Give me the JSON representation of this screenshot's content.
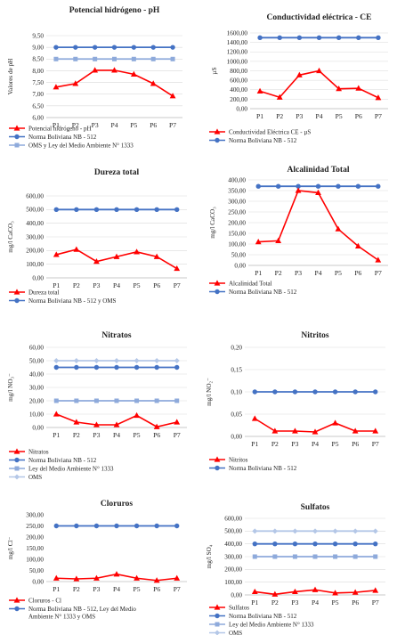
{
  "chart_data": [
    {
      "type": "line",
      "title": "Potencial hidrógeno - pH",
      "ylabel": "Valores de pH",
      "ylim": [
        6.0,
        9.5
      ],
      "ytick_step": 0.5,
      "ytick_labels": [
        "6,00",
        "6,50",
        "7,00",
        "7,50",
        "8,00",
        "8,50",
        "9,00",
        "9,50"
      ],
      "categories": [
        "P1",
        "P2",
        "P3",
        "P4",
        "P5",
        "P6",
        "P7"
      ],
      "grid": true,
      "legend_position": "bottom",
      "series": [
        {
          "name": "Potencial hidrógeno - pH",
          "values": [
            7.3,
            7.45,
            8.02,
            8.02,
            7.85,
            7.45,
            6.92
          ],
          "color": "#ff0000",
          "marker": "triangle"
        },
        {
          "name": "Norma Boliviana NB - 512",
          "values": [
            9.0,
            9.0,
            9.0,
            9.0,
            9.0,
            9.0,
            9.0
          ],
          "color": "#4472c4",
          "marker": "circle"
        },
        {
          "name": "OMS y Ley del Medio Ambiente N° 1333",
          "values": [
            8.5,
            8.5,
            8.5,
            8.5,
            8.5,
            8.5,
            8.5
          ],
          "color": "#8eaadb",
          "marker": "square"
        }
      ]
    },
    {
      "type": "line",
      "title": "Conductividad eléctrica - CE",
      "ylabel": "µS",
      "ylim": [
        0,
        1600
      ],
      "ytick_step": 200,
      "ytick_labels": [
        "0,00",
        "200,00",
        "400,00",
        "600,00",
        "800,00",
        "1000,00",
        "1200,00",
        "1400,00",
        "1600,00"
      ],
      "categories": [
        "P1",
        "P2",
        "P3",
        "P4",
        "P5",
        "P6",
        "P7"
      ],
      "grid": true,
      "legend_position": "bottom",
      "series": [
        {
          "name": "Conductividad Eléctrica CE - µS",
          "values": [
            370,
            240,
            710,
            800,
            420,
            430,
            230
          ],
          "color": "#ff0000",
          "marker": "triangle"
        },
        {
          "name": "Norma Boliviana NB - 512",
          "values": [
            1500,
            1500,
            1500,
            1500,
            1500,
            1500,
            1500
          ],
          "color": "#4472c4",
          "marker": "circle"
        }
      ]
    },
    {
      "type": "line",
      "title": "Dureza total",
      "ylabel": "mg/l CaCO₃",
      "ylim": [
        0,
        600
      ],
      "ytick_step": 100,
      "ytick_labels": [
        "0,00",
        "100,00",
        "200,00",
        "300,00",
        "400,00",
        "500,00",
        "600,00"
      ],
      "categories": [
        "P1",
        "P2",
        "P3",
        "P4",
        "P5",
        "P6",
        "P7"
      ],
      "grid": true,
      "legend_position": "bottom",
      "series": [
        {
          "name": "Dureza total",
          "values": [
            170,
            208,
            120,
            155,
            190,
            155,
            68
          ],
          "color": "#ff0000",
          "marker": "triangle"
        },
        {
          "name": "Norma Boliviana NB - 512 y OMS",
          "values": [
            500,
            500,
            500,
            500,
            500,
            500,
            500
          ],
          "color": "#4472c4",
          "marker": "circle"
        }
      ]
    },
    {
      "type": "line",
      "title": "Alcalinidad Total",
      "ylabel": "mg/l CaCO₃",
      "ylim": [
        0,
        400
      ],
      "ytick_step": 50,
      "ytick_labels": [
        "0,00",
        "50,00",
        "100,00",
        "150,00",
        "200,00",
        "250,00",
        "300,00",
        "350,00",
        "400,00"
      ],
      "categories": [
        "P1",
        "P2",
        "P3",
        "P4",
        "P5",
        "P6",
        "P7"
      ],
      "grid": true,
      "legend_position": "bottom",
      "series": [
        {
          "name": "Alcalinidad Total",
          "values": [
            110,
            115,
            350,
            340,
            170,
            90,
            25
          ],
          "color": "#ff0000",
          "marker": "triangle"
        },
        {
          "name": "Norma Boliviana NB - 512",
          "values": [
            370,
            370,
            370,
            370,
            370,
            370,
            370
          ],
          "color": "#4472c4",
          "marker": "circle"
        }
      ]
    },
    {
      "type": "line",
      "title": "Nitratos",
      "ylabel": "mg/l NO₃⁻",
      "ylim": [
        0,
        60
      ],
      "ytick_step": 10,
      "ytick_labels": [
        "0,00",
        "10,00",
        "20,00",
        "30,00",
        "40,00",
        "50,00",
        "60,00"
      ],
      "categories": [
        "P1",
        "P2",
        "P3",
        "P4",
        "P5",
        "P6",
        "P7"
      ],
      "grid": true,
      "legend_position": "bottom",
      "series": [
        {
          "name": "Nitratos",
          "values": [
            10,
            4,
            2,
            2,
            9,
            0.5,
            4
          ],
          "color": "#ff0000",
          "marker": "triangle"
        },
        {
          "name": "Norma Boliviana NB - 512",
          "values": [
            45,
            45,
            45,
            45,
            45,
            45,
            45
          ],
          "color": "#4472c4",
          "marker": "circle"
        },
        {
          "name": "Ley del Medio Ambiente N° 1333",
          "values": [
            20,
            20,
            20,
            20,
            20,
            20,
            20
          ],
          "color": "#8eaadb",
          "marker": "square"
        },
        {
          "name": "OMS",
          "values": [
            50,
            50,
            50,
            50,
            50,
            50,
            50
          ],
          "color": "#b4c7e7",
          "marker": "diamond"
        }
      ]
    },
    {
      "type": "line",
      "title": "Nitritos",
      "ylabel": "mg/l NO₂⁻",
      "ylim": [
        0,
        0.2
      ],
      "ytick_step": 0.05,
      "ytick_labels": [
        "0,00",
        "0,05",
        "0,10",
        "0,15",
        "0,20"
      ],
      "categories": [
        "P1",
        "P2",
        "P3",
        "P4",
        "P5",
        "P6",
        "P7"
      ],
      "grid": true,
      "legend_position": "bottom",
      "series": [
        {
          "name": "Nitritos",
          "values": [
            0.04,
            0.012,
            0.012,
            0.01,
            0.03,
            0.012,
            0.012
          ],
          "color": "#ff0000",
          "marker": "triangle"
        },
        {
          "name": "Norma Boliviana NB - 512",
          "values": [
            0.1,
            0.1,
            0.1,
            0.1,
            0.1,
            0.1,
            0.1
          ],
          "color": "#4472c4",
          "marker": "circle"
        }
      ]
    },
    {
      "type": "line",
      "title": "Cloruros",
      "ylabel": "mg/l Cl⁻",
      "ylim": [
        0,
        300
      ],
      "ytick_step": 50,
      "ytick_labels": [
        "0,00",
        "50,00",
        "100,00",
        "150,00",
        "200,00",
        "250,00",
        "300,00"
      ],
      "categories": [
        "P1",
        "P2",
        "P3",
        "P4",
        "P5",
        "P6",
        "P7"
      ],
      "grid": false,
      "legend_position": "bottom",
      "series": [
        {
          "name": "Cloruros - Cl",
          "values": [
            15,
            12,
            15,
            33,
            15,
            5,
            15
          ],
          "color": "#ff0000",
          "marker": "triangle"
        },
        {
          "name": "Norma Boliviana NB - 512,  Ley del Medio Ambiente N° 1333 y OMS",
          "values": [
            250,
            250,
            250,
            250,
            250,
            250,
            250
          ],
          "color": "#4472c4",
          "marker": "circle"
        }
      ]
    },
    {
      "type": "line",
      "title": "Sulfatos",
      "ylabel": "mg/l SO₄",
      "ylim": [
        0,
        600
      ],
      "ytick_step": 100,
      "ytick_labels": [
        "0,00",
        "100,00",
        "200,00",
        "300,00",
        "400,00",
        "500,00",
        "600,00"
      ],
      "categories": [
        "P1",
        "P2",
        "P3",
        "P4",
        "P5",
        "P6",
        "P7"
      ],
      "grid": true,
      "legend_position": "bottom",
      "series": [
        {
          "name": "Sulfatos",
          "values": [
            25,
            5,
            25,
            40,
            15,
            20,
            35
          ],
          "color": "#ff0000",
          "marker": "triangle"
        },
        {
          "name": "Norma Boliviana NB - 512",
          "values": [
            400,
            400,
            400,
            400,
            400,
            400,
            400
          ],
          "color": "#4472c4",
          "marker": "circle"
        },
        {
          "name": "Ley del Medio Ambiente N° 1333",
          "values": [
            300,
            300,
            300,
            300,
            300,
            300,
            300
          ],
          "color": "#8eaadb",
          "marker": "square"
        },
        {
          "name": "OMS",
          "values": [
            500,
            500,
            500,
            500,
            500,
            500,
            500
          ],
          "color": "#b4c7e7",
          "marker": "diamond"
        }
      ]
    }
  ]
}
